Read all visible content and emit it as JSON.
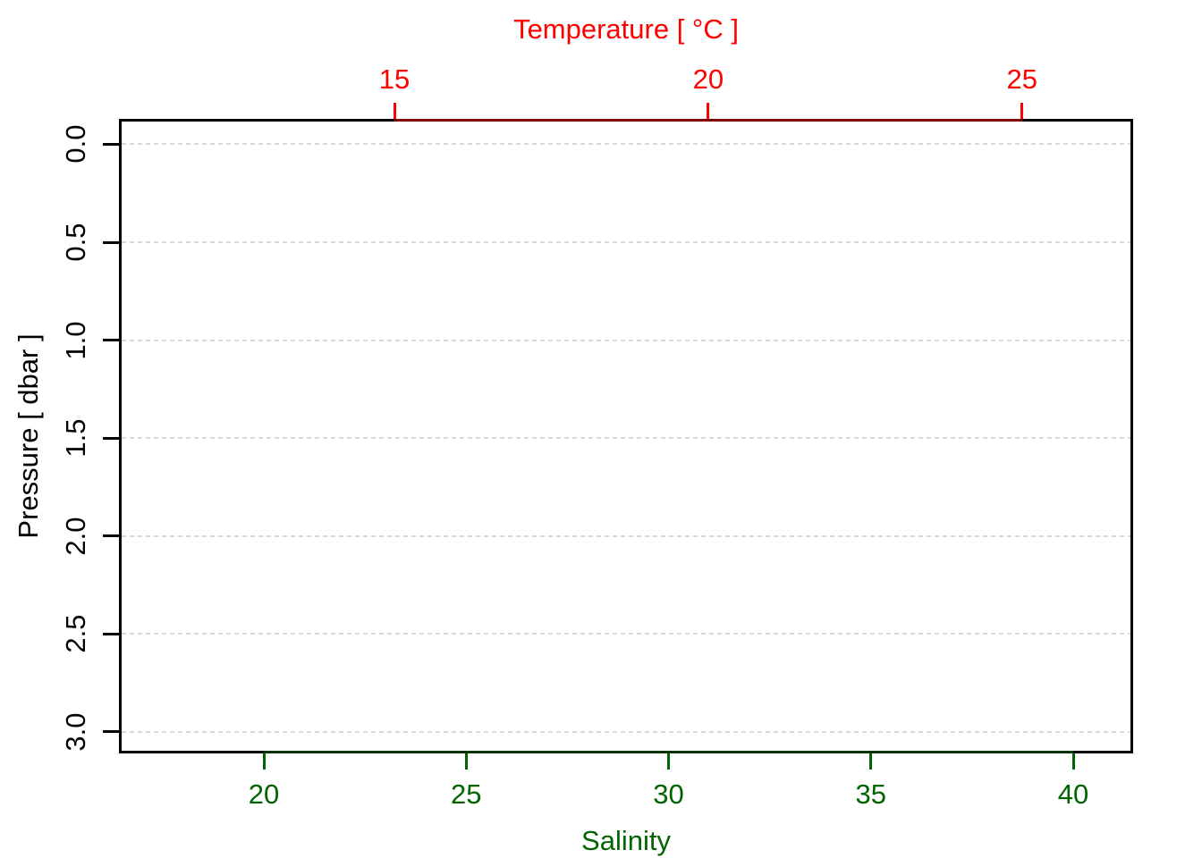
{
  "chart_data": {
    "type": "line",
    "series": [],
    "note_no_data_plotted": true,
    "background": "#ffffff",
    "box_color": "#000000",
    "axes": {
      "top": {
        "label": "Temperature [ °C ]",
        "color": "#ff0000",
        "tick_values": [
          15,
          20,
          25
        ],
        "tick_labels": [
          "15",
          "20",
          "25"
        ],
        "range": [
          10.61,
          26.77
        ]
      },
      "bottom": {
        "label": "Salinity",
        "color": "#006400",
        "tick_values": [
          20,
          25,
          30,
          35,
          40
        ],
        "tick_labels": [
          "20",
          "25",
          "30",
          "35",
          "40"
        ],
        "range": [
          16.42,
          41.48
        ]
      },
      "left": {
        "label": "Pressure [ dbar ]",
        "color": "#000000",
        "tick_values": [
          0,
          0.5,
          1,
          1.5,
          2,
          2.5,
          3
        ],
        "tick_labels": [
          "0.0",
          "0.5",
          "1.0",
          "1.5",
          "2.0",
          "2.5",
          "3.0"
        ],
        "range": [
          -0.13,
          3.11
        ]
      }
    },
    "grid": {
      "orientation": "horizontal",
      "at": [
        0,
        0.5,
        1,
        1.5,
        2,
        2.5,
        3
      ],
      "color": "#d8d8d8",
      "style": "dotted"
    }
  }
}
